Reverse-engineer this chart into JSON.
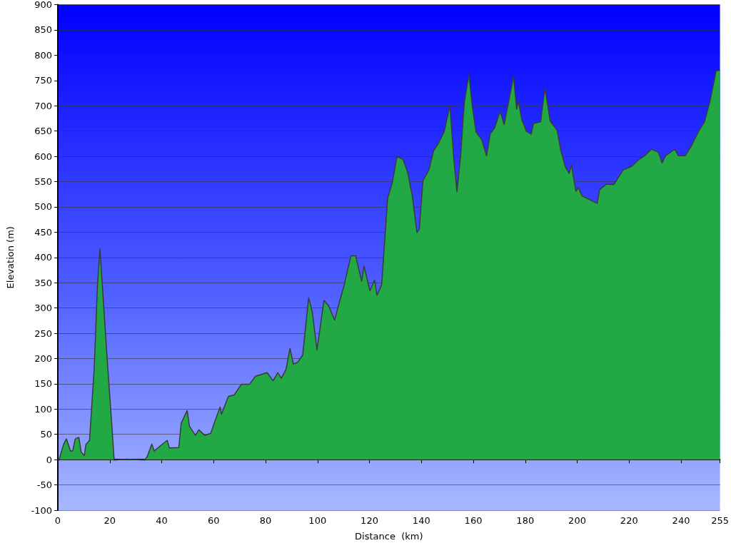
{
  "chart_data": {
    "type": "area",
    "xlabel": "Distance  (km)",
    "ylabel": "Elevation (m)",
    "xlim": [
      0,
      255
    ],
    "xticks": [
      0,
      20,
      40,
      60,
      80,
      100,
      120,
      140,
      160,
      180,
      200,
      220,
      240,
      255
    ],
    "ylim": [
      -100,
      900
    ],
    "yticks": [
      -100,
      -50,
      0,
      50,
      100,
      150,
      200,
      250,
      300,
      350,
      400,
      450,
      500,
      550,
      600,
      650,
      700,
      750,
      800,
      850,
      900
    ],
    "grid": "y",
    "series": [
      {
        "color": "#22a845",
        "x": [
          0,
          0.4,
          2.2,
          3.3,
          4.9,
          5.7,
          6.7,
          8.1,
          9,
          10.2,
          10.8,
          12.2,
          14,
          15.3,
          16.2,
          17.1,
          19,
          20.5,
          21.7,
          26.7,
          30.3,
          33.5,
          34.4,
          36.2,
          37.1,
          39.4,
          42.1,
          43,
          46.6,
          47.5,
          49.8,
          50.7,
          53,
          54.3,
          56.6,
          58.9,
          60.2,
          62.5,
          63,
          65.7,
          67.9,
          70.7,
          73.8,
          76.1,
          80.6,
          82.9,
          84.7,
          86.1,
          87.9,
          89.4,
          90.7,
          92.5,
          94.3,
          96.6,
          98,
          99.8,
          102.5,
          104.3,
          106.6,
          108.4,
          110.2,
          112.9,
          114.7,
          117,
          117.9,
          120.2,
          122,
          122.9,
          124.7,
          127,
          128.8,
          130.6,
          132.9,
          134.7,
          136.5,
          138.3,
          139.2,
          140.6,
          142.9,
          144.7,
          146.5,
          148.8,
          151,
          152.4,
          153.7,
          155.1,
          156.5,
          158.3,
          159.6,
          161,
          163.3,
          165.1,
          166.5,
          168.2,
          170.3,
          171.9,
          173.7,
          175.5,
          176.7,
          177.3,
          178.7,
          180.5,
          182.3,
          183.2,
          185.9,
          187.6,
          189.6,
          192.3,
          193.7,
          195.5,
          196.9,
          197.8,
          199.5,
          200.5,
          201.8,
          204.5,
          207.7,
          208.6,
          211.3,
          214.1,
          217.7,
          220.9,
          223.6,
          225.9,
          228.6,
          231.3,
          232.7,
          234,
          237.6,
          239,
          241.6,
          244,
          246.7,
          249,
          251.2,
          253.5,
          255
        ],
        "values": [
          0,
          -1,
          30,
          41,
          17,
          17,
          41,
          44,
          15,
          8,
          30,
          38,
          179,
          348,
          417,
          348,
          199,
          90,
          -1,
          1,
          0,
          -1,
          6,
          31,
          17,
          27,
          38,
          23,
          24,
          72,
          97,
          66,
          48,
          59,
          48,
          52,
          72,
          104,
          90,
          125,
          128,
          149,
          149,
          165,
          172,
          156,
          172,
          161,
          179,
          220,
          189,
          193,
          207,
          320,
          292,
          217,
          315,
          304,
          276,
          311,
          344,
          403,
          403,
          353,
          383,
          334,
          355,
          325,
          346,
          517,
          548,
          600,
          594,
          569,
          522,
          449,
          456,
          552,
          573,
          611,
          625,
          649,
          700,
          601,
          530,
          601,
          705,
          762,
          700,
          649,
          632,
          601,
          644,
          656,
          689,
          663,
          710,
          759,
          693,
          710,
          672,
          649,
          644,
          665,
          668,
          735,
          670,
          651,
          611,
          579,
          566,
          583,
          531,
          538,
          522,
          515,
          507,
          534,
          545,
          544,
          573,
          580,
          593,
          601,
          614,
          608,
          587,
          601,
          614,
          601,
          601,
          621,
          649,
          668,
          710,
          769,
          770
        ]
      }
    ]
  }
}
